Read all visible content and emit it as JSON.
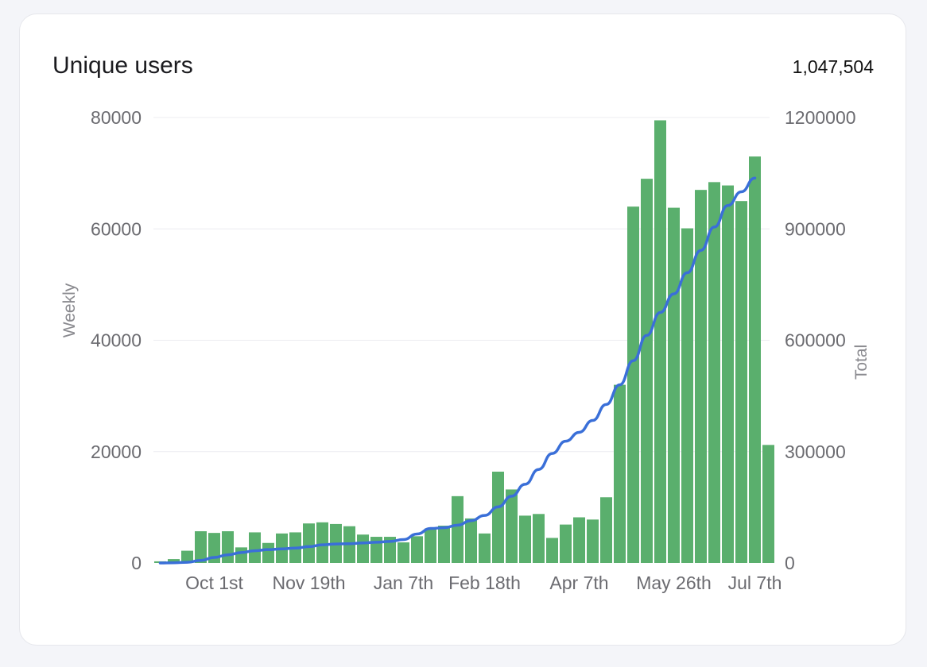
{
  "card": {
    "title": "Unique users",
    "total": "1,047,504"
  },
  "chart_data": {
    "type": "bar",
    "x_tick_labels": [
      "Oct 1st",
      "Nov 19th",
      "Jan 7th",
      "Feb 18th",
      "Apr 7th",
      "May 26th",
      "Jul 7th"
    ],
    "x_tick_indices": [
      4,
      11,
      18,
      24,
      31,
      38,
      44
    ],
    "y_left": {
      "label": "Weekly",
      "lim": [
        0,
        80000
      ],
      "ticks": [
        0,
        20000,
        40000,
        60000,
        80000
      ]
    },
    "y_right": {
      "label": "Total",
      "lim": [
        0,
        1200000
      ],
      "ticks": [
        0,
        300000,
        600000,
        900000,
        1200000
      ]
    },
    "grid": true,
    "series": [
      {
        "kind": "bar",
        "axis": "left",
        "color": "#5aaf6d",
        "values": [
          300,
          700,
          2200,
          5700,
          5400,
          5700,
          2800,
          5500,
          3600,
          5300,
          5500,
          7100,
          7300,
          7000,
          6600,
          5100,
          4700,
          4700,
          3700,
          4800,
          6200,
          6700,
          12000,
          8000,
          5300,
          16400,
          13200,
          8500,
          8800,
          4500,
          6900,
          8200,
          7800,
          11800,
          32000,
          64000,
          69000,
          79500,
          63800,
          60100,
          67000,
          68400,
          67800,
          65000,
          73000,
          21200
        ]
      },
      {
        "kind": "line",
        "axis": "right",
        "color": "#3a6fd8",
        "values": [
          0,
          500,
          2000,
          7000,
          15000,
          22000,
          28000,
          33000,
          36000,
          38000,
          40000,
          44000,
          49000,
          51000,
          52000,
          54000,
          56000,
          58000,
          63000,
          78000,
          93000,
          95000,
          102000,
          114000,
          128000,
          151000,
          180000,
          212000,
          252000,
          295000,
          328000,
          352000,
          384000,
          427000,
          480000,
          545000,
          613000,
          675000,
          725000,
          782000,
          842000,
          905000,
          963000,
          1000000,
          1037000
        ]
      }
    ]
  }
}
